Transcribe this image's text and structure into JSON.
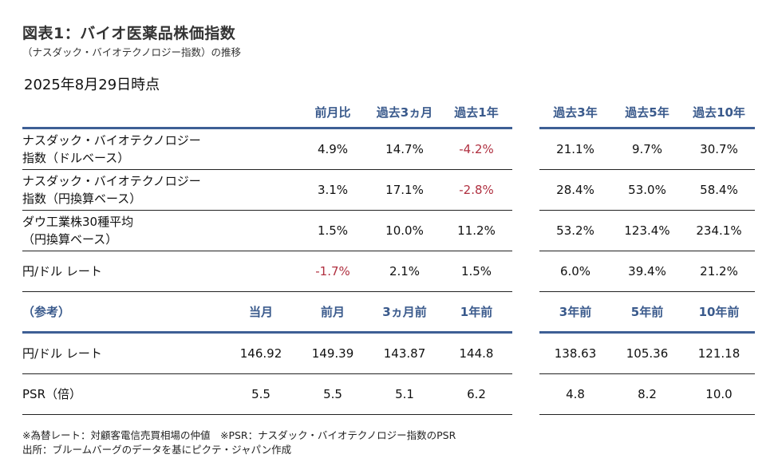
{
  "title": "図表1：バイオ医薬品株価指数",
  "subtitle": "（ナスダック・バイオテクノロジー指数）の推移",
  "as_of": "2025年8月29日時点",
  "colors": {
    "header_text": "#3a5a8c",
    "header_rule": "#3e5f95",
    "negative": "#b03040"
  },
  "performance_table": {
    "headers": [
      "",
      "前月比",
      "過去3ヵ月",
      "過去1年",
      "過去3年",
      "過去5年",
      "過去10年"
    ],
    "rows": [
      {
        "label": [
          "ナスダック・バイオテクノロジー",
          "指数（ドルベース）"
        ],
        "values": [
          "",
          "4.9%",
          "14.7%",
          "-4.2%",
          "21.1%",
          "9.7%",
          "30.7%"
        ]
      },
      {
        "label": [
          "ナスダック・バイオテクノロジー",
          "指数（円換算ベース）"
        ],
        "values": [
          "",
          "3.1%",
          "17.1%",
          "-2.8%",
          "28.4%",
          "53.0%",
          "58.4%"
        ]
      },
      {
        "label": [
          "ダウ工業株30種平均",
          "（円換算ベース）"
        ],
        "values": [
          "",
          "1.5%",
          "10.0%",
          "11.2%",
          "53.2%",
          "123.4%",
          "234.1%"
        ]
      },
      {
        "label": [
          "円/ドル レート"
        ],
        "values": [
          "",
          "-1.7%",
          "2.1%",
          "1.5%",
          "6.0%",
          "39.4%",
          "21.2%"
        ]
      }
    ]
  },
  "reference_table": {
    "headers": [
      "（参考）",
      "当月",
      "前月",
      "3ヵ月前",
      "1年前",
      "3年前",
      "5年前",
      "10年前"
    ],
    "rows": [
      {
        "label": [
          "円/ドル レート"
        ],
        "values": [
          "146.92",
          "149.39",
          "143.87",
          "144.8",
          "138.63",
          "105.36",
          "121.18"
        ]
      },
      {
        "label": [
          "PSR（倍）"
        ],
        "values": [
          "5.5",
          "5.5",
          "5.1",
          "6.2",
          "4.8",
          "8.2",
          "10.0"
        ]
      }
    ]
  },
  "notes": [
    "※為替レート：対顧客電信売買相場の仲値　※PSR：ナスダック・バイオテクノロジー指数のPSR",
    "出所：ブルームバーグのデータを基にピクテ・ジャパン作成"
  ]
}
